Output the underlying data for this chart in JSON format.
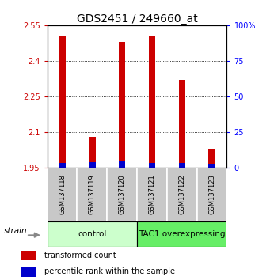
{
  "title": "GDS2451 / 249660_at",
  "samples": [
    "GSM137118",
    "GSM137119",
    "GSM137120",
    "GSM137121",
    "GSM137122",
    "GSM137123"
  ],
  "transformed_counts": [
    2.505,
    2.08,
    2.48,
    2.505,
    2.32,
    2.03
  ],
  "percentile_ranks": [
    3.5,
    4.0,
    4.5,
    3.8,
    3.8,
    3.2
  ],
  "baseline": 1.95,
  "ylim_left": [
    1.95,
    2.55
  ],
  "ylim_right": [
    0,
    100
  ],
  "yticks_left": [
    1.95,
    2.1,
    2.25,
    2.4,
    2.55
  ],
  "yticks_right": [
    0,
    25,
    50,
    75,
    100
  ],
  "ytick_labels_left": [
    "1.95",
    "2.1",
    "2.25",
    "2.4",
    "2.55"
  ],
  "ytick_labels_right": [
    "0",
    "25",
    "50",
    "75",
    "100%"
  ],
  "groups": [
    {
      "label": "control",
      "indices": [
        0,
        1,
        2
      ],
      "color": "#ccffcc"
    },
    {
      "label": "TAC1 overexpressing",
      "indices": [
        3,
        4,
        5
      ],
      "color": "#66ee66"
    }
  ],
  "red_color": "#cc0000",
  "blue_color": "#0000cc",
  "bar_bg_color": "#cccccc",
  "sample_bg_color": "#c8c8c8",
  "strain_label": "strain",
  "legend_red": "transformed count",
  "legend_blue": "percentile rank within the sample",
  "title_fontsize": 10,
  "tick_fontsize": 7,
  "label_fontsize": 7
}
